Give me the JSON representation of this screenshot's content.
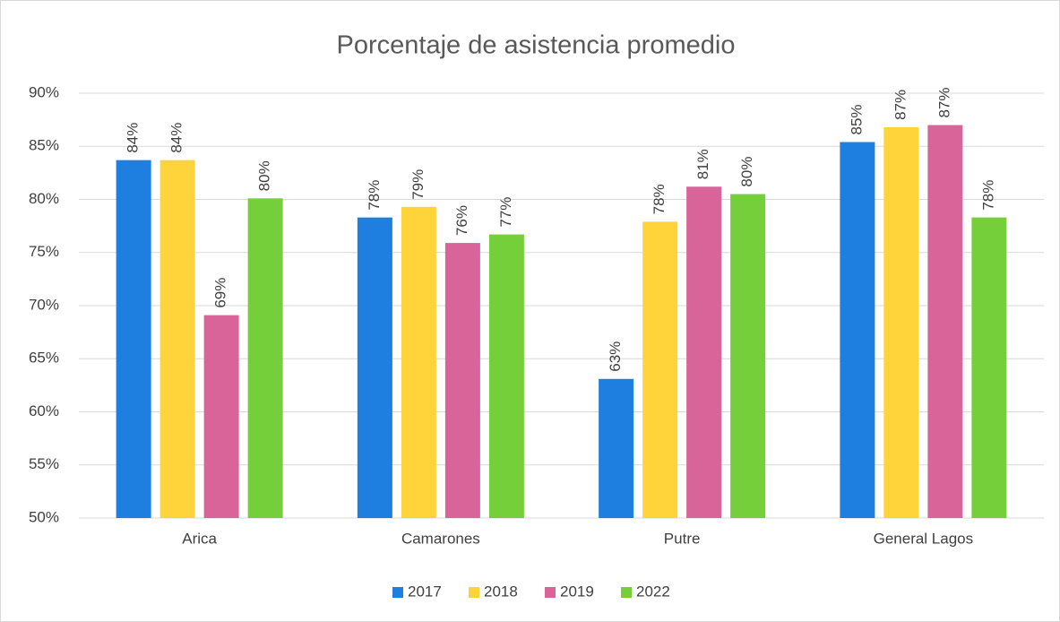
{
  "chart_data": {
    "type": "bar",
    "title": "Porcentaje de asistencia promedio",
    "categories": [
      "Arica",
      "Camarones",
      "Putre",
      "General Lagos"
    ],
    "series": [
      {
        "name": "2017",
        "color": "#1f7fe0",
        "values": [
          83.7,
          78.3,
          63.1,
          85.4
        ],
        "value_labels": [
          "84%",
          "78%",
          "63%",
          "85%"
        ]
      },
      {
        "name": "2018",
        "color": "#ffd43b",
        "values": [
          83.7,
          79.3,
          77.9,
          86.8
        ],
        "value_labels": [
          "84%",
          "79%",
          "78%",
          "87%"
        ]
      },
      {
        "name": "2019",
        "color": "#d9649a",
        "values": [
          69.1,
          75.9,
          81.2,
          87.0
        ],
        "value_labels": [
          "69%",
          "76%",
          "81%",
          "87%"
        ]
      },
      {
        "name": "2022",
        "color": "#74cf3a",
        "values": [
          80.1,
          76.7,
          80.5,
          78.3
        ],
        "value_labels": [
          "80%",
          "77%",
          "80%",
          "78%"
        ]
      }
    ],
    "ylim": [
      50,
      90
    ],
    "yticks": [
      {
        "value": 50,
        "label": "50%"
      },
      {
        "value": 55,
        "label": "55%"
      },
      {
        "value": 60,
        "label": "60%"
      },
      {
        "value": 65,
        "label": "65%"
      },
      {
        "value": 70,
        "label": "70%"
      },
      {
        "value": 75,
        "label": "75%"
      },
      {
        "value": 80,
        "label": "80%"
      },
      {
        "value": 85,
        "label": "85%"
      },
      {
        "value": 90,
        "label": "90%"
      }
    ],
    "grid": true,
    "legend": "bottom"
  }
}
